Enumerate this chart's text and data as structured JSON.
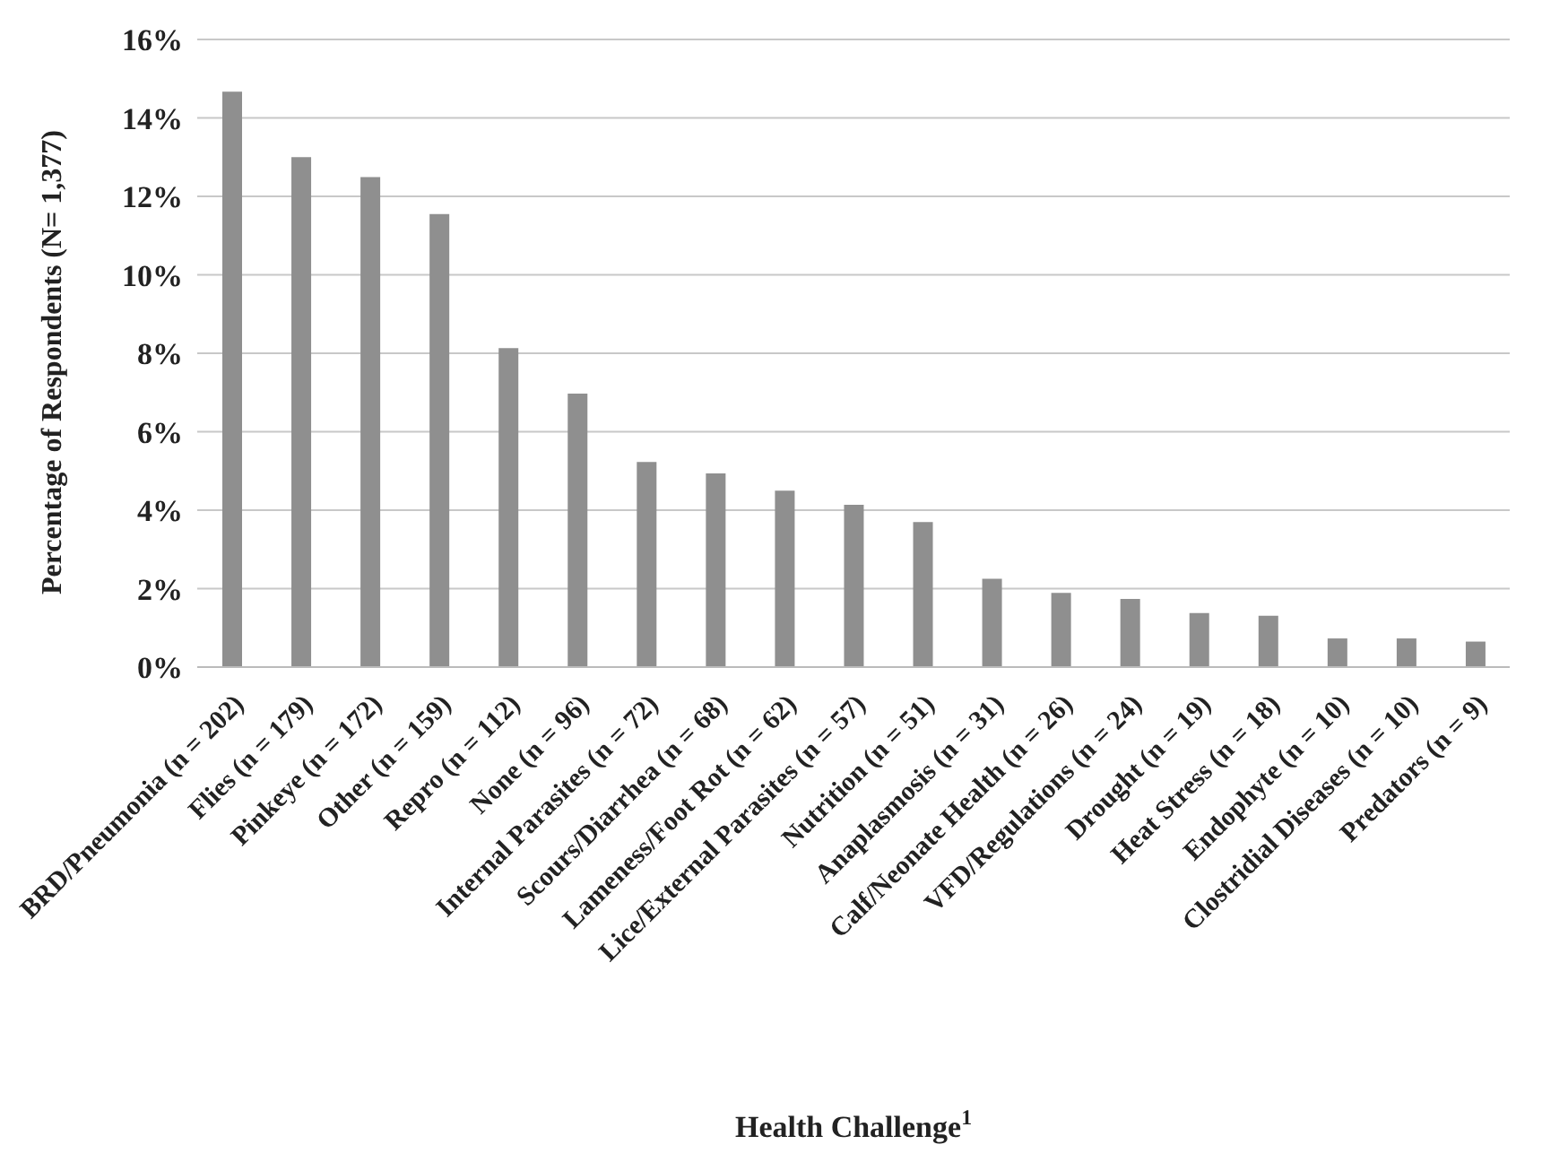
{
  "chart_data": {
    "type": "bar",
    "xlabel": "Health Challenge$^{1}$",
    "ylabel": "Percentage of Respondents (N= 1,377)",
    "categories": [
      "BRD/Pneumonia (n = 202)",
      "Flies (n = 179)",
      "Pinkeye (n = 172)",
      "Other (n = 159)",
      "Repro (n = 112)",
      "None (n = 96)",
      "Internal Parasites (n = 72)",
      "Scours/Diarrhea (n = 68)",
      "Lameness/Foot Rot (n = 62)",
      "Lice/External Parasites (n = 57)",
      "Nutrition (n = 51)",
      "Anaplasmosis (n = 31)",
      "Calf/Neonate Health (n = 26)",
      "VFD/Regulations (n = 24)",
      "Drought (n = 19)",
      "Heat Stress (n = 18)",
      "Endophyte (n = 10)",
      "Clostridial Diseases (n = 10)",
      "Predators (n = 9)"
    ],
    "values": [
      14.67,
      13.0,
      12.49,
      11.55,
      8.13,
      6.97,
      5.23,
      4.94,
      4.5,
      4.14,
      3.7,
      2.25,
      1.89,
      1.74,
      1.38,
      1.31,
      0.73,
      0.73,
      0.65
    ],
    "color": "#8f8f8f",
    "ylim": [
      0,
      16
    ],
    "yticks": [
      {
        "value": 0,
        "label": "0%"
      },
      {
        "value": 2,
        "label": "2%"
      },
      {
        "value": 4,
        "label": "4%"
      },
      {
        "value": 6,
        "label": "6%"
      },
      {
        "value": 8,
        "label": "8%"
      },
      {
        "value": 10,
        "label": "10%"
      },
      {
        "value": 12,
        "label": "12%"
      },
      {
        "value": 14,
        "label": "14%"
      },
      {
        "value": 16,
        "label": "16%"
      }
    ],
    "grid": "y",
    "legend": false
  }
}
